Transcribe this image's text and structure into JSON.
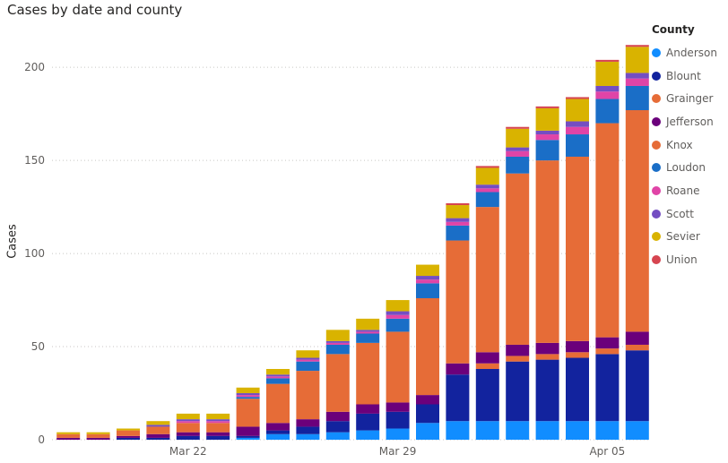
{
  "chart_data": {
    "type": "bar",
    "stacked": true,
    "title": "Cases by date and county",
    "xlabel": "",
    "ylabel": "Cases",
    "ylim": [
      0,
      215
    ],
    "yticks": [
      0,
      50,
      100,
      150,
      200
    ],
    "x_tick_labels": [
      "Mar 22",
      "Mar 29",
      "Apr 05"
    ],
    "x_tick_at_index": [
      4,
      11,
      18
    ],
    "grid": "horizontal dotted",
    "legend_title": "County",
    "legend_position": "right",
    "categories": [
      "Mar 18",
      "Mar 19",
      "Mar 20",
      "Mar 21",
      "Mar 22",
      "Mar 23",
      "Mar 24",
      "Mar 25",
      "Mar 26",
      "Mar 27",
      "Mar 28",
      "Mar 29",
      "Mar 30",
      "Mar 31",
      "Apr 01",
      "Apr 02",
      "Apr 03",
      "Apr 04",
      "Apr 05",
      "Apr 06"
    ],
    "series": [
      {
        "name": "Anderson",
        "color": "#118dff",
        "values": [
          0,
          0,
          0,
          0,
          0,
          0,
          1,
          3,
          3,
          4,
          5,
          6,
          9,
          10,
          10,
          10,
          10,
          10,
          10,
          10
        ]
      },
      {
        "name": "Blount",
        "color": "#12239e",
        "values": [
          0,
          0,
          1,
          1,
          2,
          2,
          1,
          2,
          4,
          6,
          9,
          9,
          10,
          25,
          28,
          32,
          33,
          34,
          36,
          38
        ]
      },
      {
        "name": "Grainger",
        "color": "#e66c37",
        "values": [
          0,
          0,
          0,
          0,
          0,
          0,
          0,
          0,
          0,
          0,
          0,
          0,
          0,
          0,
          3,
          3,
          3,
          3,
          3,
          3
        ]
      },
      {
        "name": "Jefferson",
        "color": "#6b007b",
        "values": [
          1,
          1,
          1,
          2,
          2,
          2,
          5,
          4,
          4,
          5,
          5,
          5,
          5,
          6,
          6,
          6,
          6,
          6,
          6,
          7
        ]
      },
      {
        "name": "Knox",
        "color": "#e66c37",
        "values": [
          2,
          2,
          3,
          4,
          5,
          5,
          15,
          21,
          26,
          31,
          33,
          38,
          52,
          66,
          78,
          92,
          98,
          99,
          115,
          119
        ]
      },
      {
        "name": "Loudon",
        "color": "#1a6ec7",
        "values": [
          0,
          0,
          0,
          0,
          0,
          0,
          1,
          3,
          5,
          5,
          5,
          7,
          8,
          8,
          8,
          9,
          11,
          12,
          13,
          13
        ]
      },
      {
        "name": "Roane",
        "color": "#e044a7",
        "values": [
          0,
          0,
          0,
          0,
          1,
          1,
          1,
          1,
          1,
          1,
          1,
          2,
          2,
          2,
          2,
          3,
          3,
          4,
          4,
          4
        ]
      },
      {
        "name": "Scott",
        "color": "#744ec2",
        "values": [
          0,
          0,
          0,
          1,
          1,
          1,
          1,
          1,
          1,
          1,
          1,
          2,
          2,
          2,
          2,
          2,
          2,
          3,
          3,
          3
        ]
      },
      {
        "name": "Sevier",
        "color": "#d9b300",
        "values": [
          1,
          1,
          1,
          2,
          3,
          3,
          3,
          3,
          4,
          6,
          6,
          6,
          6,
          7,
          9,
          10,
          12,
          12,
          13,
          14
        ]
      },
      {
        "name": "Union",
        "color": "#d64550",
        "values": [
          0,
          0,
          0,
          0,
          0,
          0,
          0,
          0,
          0,
          0,
          0,
          0,
          0,
          1,
          1,
          1,
          1,
          1,
          1,
          1
        ]
      }
    ]
  }
}
